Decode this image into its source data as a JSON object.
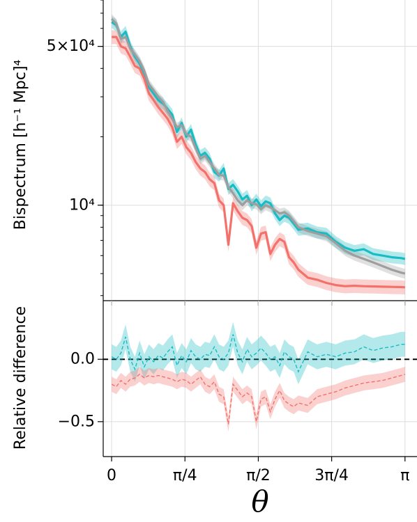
{
  "chart_data": [
    {
      "type": "line",
      "panel": "top",
      "ylabel": "Bispectrum [h⁻¹ Mpc]⁴",
      "yscale": "log",
      "ylim": [
        3800,
        80000
      ],
      "xlim": [
        -0.09,
        3.27
      ],
      "grid": true,
      "y_tick_labels": [
        {
          "value": 10000,
          "label": "10⁴"
        },
        {
          "value": 50000,
          "label": "5×10⁴"
        }
      ],
      "x": [
        0.0,
        0.05,
        0.1,
        0.15,
        0.2,
        0.25,
        0.3,
        0.35,
        0.4,
        0.45,
        0.5,
        0.55,
        0.6,
        0.65,
        0.7,
        0.75,
        0.8,
        0.85,
        0.9,
        0.95,
        1.0,
        1.05,
        1.1,
        1.15,
        1.2,
        1.25,
        1.3,
        1.35,
        1.4,
        1.45,
        1.5,
        1.55,
        1.6,
        1.65,
        1.7,
        1.75,
        1.8,
        1.85,
        1.9,
        1.95,
        2.0,
        2.1,
        2.2,
        2.3,
        2.4,
        2.5,
        2.6,
        2.7,
        2.8,
        2.9,
        3.0,
        3.1,
        3.1416
      ],
      "series": [
        {
          "color": "#17bcc4",
          "values": [
            64000,
            62000,
            55000,
            58000,
            50000,
            45000,
            42000,
            38000,
            33000,
            31000,
            29000,
            28000,
            26500,
            25000,
            21000,
            23000,
            20000,
            21500,
            18500,
            16500,
            17000,
            16000,
            14000,
            13500,
            14500,
            11800,
            12300,
            11500,
            10600,
            11000,
            10000,
            10600,
            9900,
            10400,
            10200,
            9200,
            8600,
            9000,
            8800,
            8300,
            7800,
            7900,
            7600,
            7500,
            6900,
            6500,
            6300,
            6400,
            6100,
            6000,
            5900,
            5850,
            5800
          ],
          "band": 0.06
        },
        {
          "color": "#9e9e9e",
          "values": [
            66000,
            63000,
            54000,
            55000,
            49000,
            46000,
            43000,
            39000,
            34000,
            32000,
            30000,
            28500,
            26000,
            24000,
            22000,
            22500,
            20500,
            20000,
            17800,
            16000,
            16500,
            15500,
            14500,
            13600,
            13500,
            12000,
            11300,
            10500,
            10000,
            10500,
            10200,
            10100,
            9600,
            10000,
            9800,
            9500,
            9200,
            9300,
            9000,
            8500,
            8000,
            7700,
            7500,
            7300,
            6800,
            6300,
            6000,
            5800,
            5600,
            5400,
            5200,
            5050,
            5000
          ],
          "band": 0.05
        },
        {
          "color": "#f4706a",
          "values": [
            55000,
            55000,
            50000,
            49000,
            45000,
            41000,
            40000,
            36000,
            31000,
            29000,
            27000,
            25500,
            24000,
            22000,
            19000,
            20000,
            18000,
            17000,
            15500,
            14500,
            14000,
            13000,
            12500,
            10500,
            10000,
            6700,
            10200,
            9400,
            8800,
            8600,
            8100,
            6500,
            7500,
            7600,
            6100,
            6700,
            7100,
            6900,
            5900,
            5600,
            5200,
            4800,
            4700,
            4550,
            4450,
            4400,
            4420,
            4400,
            4390,
            4380,
            4370,
            4360,
            4350
          ],
          "band": 0.07
        }
      ]
    },
    {
      "type": "line",
      "panel": "bottom",
      "ylabel": "Relative difference",
      "ylim": [
        -0.78,
        0.47
      ],
      "xlim": [
        -0.09,
        3.27
      ],
      "xlabel": "θ",
      "grid": true,
      "reference_line": 0.0,
      "y_tick_labels": [
        {
          "value": 0.0,
          "label": "0.0"
        },
        {
          "value": -0.5,
          "label": "−0.5"
        }
      ],
      "x_tick_labels": [
        {
          "value": 0.0,
          "label": "0"
        },
        {
          "value": 0.7854,
          "label": "π/4"
        },
        {
          "value": 1.5708,
          "label": "π/2"
        },
        {
          "value": 2.3562,
          "label": "3π/4"
        },
        {
          "value": 3.1416,
          "label": "π"
        }
      ],
      "x": [
        0.0,
        0.05,
        0.1,
        0.15,
        0.2,
        0.25,
        0.3,
        0.35,
        0.4,
        0.45,
        0.5,
        0.55,
        0.6,
        0.65,
        0.7,
        0.75,
        0.8,
        0.85,
        0.9,
        0.95,
        1.0,
        1.05,
        1.1,
        1.15,
        1.2,
        1.25,
        1.3,
        1.35,
        1.4,
        1.45,
        1.5,
        1.55,
        1.6,
        1.65,
        1.7,
        1.75,
        1.8,
        1.85,
        1.9,
        1.95,
        2.0,
        2.1,
        2.2,
        2.3,
        2.4,
        2.5,
        2.6,
        2.7,
        2.8,
        2.9,
        3.0,
        3.1,
        3.1416
      ],
      "series": [
        {
          "color": "#17bcc4",
          "values": [
            0.02,
            0.0,
            0.05,
            0.18,
            0.0,
            -0.08,
            0.05,
            -0.06,
            0.02,
            -0.02,
            0.03,
            0.01,
            0.06,
            0.1,
            -0.05,
            0.03,
            -0.02,
            0.07,
            0.02,
            0.0,
            0.04,
            0.03,
            0.1,
            0.02,
            0.0,
            0.05,
            0.2,
            0.05,
            -0.02,
            0.08,
            0.02,
            0.05,
            0.09,
            0.05,
            0.0,
            0.02,
            -0.05,
            0.06,
            0.02,
            0.0,
            -0.1,
            0.06,
            0.02,
            0.04,
            0.02,
            0.05,
            0.06,
            0.1,
            0.07,
            0.09,
            0.1,
            0.12,
            0.12
          ],
          "band": 0.1
        },
        {
          "color": "#f4706a",
          "values": [
            -0.2,
            -0.22,
            -0.17,
            -0.2,
            -0.16,
            -0.15,
            -0.12,
            -0.15,
            -0.13,
            -0.14,
            -0.13,
            -0.14,
            -0.15,
            -0.16,
            -0.18,
            -0.16,
            -0.17,
            -0.2,
            -0.17,
            -0.14,
            -0.2,
            -0.22,
            -0.18,
            -0.28,
            -0.3,
            -0.52,
            -0.2,
            -0.25,
            -0.3,
            -0.27,
            -0.3,
            -0.5,
            -0.32,
            -0.3,
            -0.42,
            -0.32,
            -0.25,
            -0.33,
            -0.36,
            -0.38,
            -0.35,
            -0.37,
            -0.3,
            -0.28,
            -0.26,
            -0.23,
            -0.21,
            -0.19,
            -0.18,
            -0.17,
            -0.15,
            -0.13,
            -0.12
          ],
          "band": 0.06
        }
      ]
    }
  ]
}
